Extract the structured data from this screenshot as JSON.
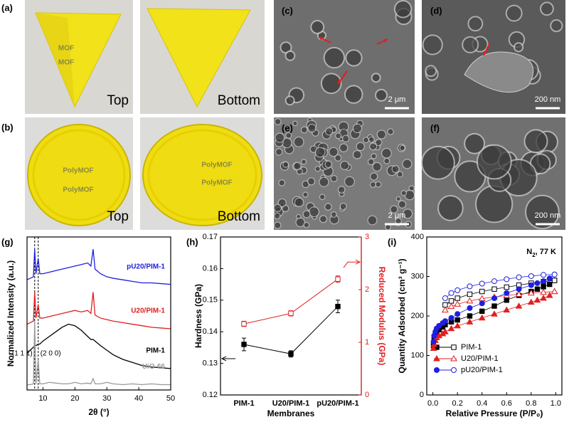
{
  "panel_labels": [
    "(a)",
    "(b)",
    "(c)",
    "(d)",
    "(e)",
    "(f)",
    "(g)",
    "(h)",
    "(i)"
  ],
  "photos": [
    {
      "inscriptions": [
        "MOF",
        "MOF"
      ],
      "caption": "Top"
    },
    {
      "caption": "Bottom"
    },
    {
      "inscriptions": [
        "PolyMOF",
        "PolyMOF"
      ],
      "caption": "Top"
    },
    {
      "inscriptions": [
        "PolyMOF",
        "PolyMOF"
      ],
      "caption": "Bottom"
    }
  ],
  "sem": [
    {
      "scale": "2 μm"
    },
    {
      "scale": "200 nm"
    },
    {
      "scale": "2 μm"
    },
    {
      "scale": "200 nm"
    }
  ],
  "chart_data": [
    {
      "type": "line",
      "xlabel": "2θ (°)",
      "ylabel": "Normalized Intensity (a.u.)",
      "x": [
        5,
        6,
        7,
        7.4,
        7.8,
        8.5,
        9,
        10,
        12,
        14,
        16,
        18,
        20,
        22,
        24,
        25,
        25.7,
        26.3,
        28,
        30,
        32,
        35,
        38,
        41,
        44,
        47,
        50
      ],
      "xlim": [
        5,
        50
      ],
      "xticks": [
        10,
        20,
        30,
        40,
        50
      ],
      "ylim": [
        0,
        10
      ],
      "series": [
        {
          "name": "pU20/PIM-1",
          "color": "#1f1fe0",
          "values": [
            7.2,
            7.3,
            7.4,
            9.2,
            7.6,
            8.6,
            7.6,
            7.6,
            7.7,
            7.8,
            7.9,
            8.0,
            8.1,
            8.2,
            8.3,
            8.1,
            9.2,
            7.9,
            7.6,
            7.4,
            7.3,
            7.2,
            7.1,
            7.0,
            7.0,
            6.95,
            6.9
          ]
        },
        {
          "name": "U20/PIM-1",
          "color": "#e02020",
          "values": [
            4.3,
            4.4,
            4.5,
            6.4,
            4.7,
            5.6,
            4.7,
            4.7,
            4.8,
            4.9,
            5.0,
            5.1,
            5.2,
            5.1,
            5.2,
            5.0,
            6.4,
            4.9,
            4.7,
            4.6,
            4.5,
            4.4,
            4.3,
            4.2,
            4.1,
            4.05,
            4.0
          ]
        },
        {
          "name": "PIM-1",
          "color": "#000000",
          "values": [
            2.4,
            2.6,
            2.8,
            2.9,
            2.9,
            3.0,
            3.0,
            3.2,
            3.5,
            3.8,
            4.1,
            4.3,
            4.2,
            3.9,
            3.5,
            3.3,
            3.3,
            3.2,
            2.9,
            2.6,
            2.3,
            2.0,
            1.8,
            1.6,
            1.5,
            1.45,
            1.4
          ]
        },
        {
          "name": "UiO-66",
          "color": "#999999",
          "values": [
            0.35,
            0.35,
            0.4,
            4.5,
            0.4,
            2.0,
            0.4,
            0.4,
            0.5,
            0.45,
            0.4,
            0.4,
            0.5,
            0.4,
            0.45,
            0.4,
            0.75,
            0.4,
            0.4,
            0.5,
            0.4,
            0.35,
            0.4,
            0.35,
            0.4,
            0.35,
            0.35
          ]
        }
      ],
      "reference_lines": [
        {
          "value": 7.4,
          "label": "(1 1 1)"
        },
        {
          "value": 8.5,
          "label": "(2 0 0)"
        }
      ]
    },
    {
      "type": "line",
      "xlabel": "Membranes",
      "ylabel": "Hardness (GPa)",
      "y2label": "Reduced Modulus (GPa)",
      "categories": [
        "PIM-1",
        "U20/PIM-1",
        "pU20/PIM-1"
      ],
      "ylim": [
        0.12,
        0.17
      ],
      "yticks": [
        0.12,
        0.13,
        0.14,
        0.15,
        0.16,
        0.17
      ],
      "y2lim": [
        0,
        3
      ],
      "y2ticks": [
        0,
        1,
        2,
        3
      ],
      "series": [
        {
          "color": "#000000",
          "values": [
            0.136,
            0.133,
            0.148
          ],
          "errors": [
            0.002,
            0.001,
            0.002
          ]
        },
        {
          "color": "#e02020",
          "axis": "y2",
          "values": [
            1.35,
            1.55,
            2.2
          ],
          "errors": [
            0.05,
            0.05,
            0.06
          ]
        }
      ]
    },
    {
      "type": "line",
      "xlabel": "Relative Pressure (P/P₀)",
      "ylabel": "Quantity Adsorbed (cm³ g⁻¹)",
      "annotation": [
        "N",
        "2",
        ", 77 K"
      ],
      "xlim": [
        -0.05,
        1.05
      ],
      "xticks": [
        0.0,
        0.2,
        0.4,
        0.6,
        0.8,
        1.0
      ],
      "ylim": [
        0,
        400
      ],
      "yticks": [
        0,
        100,
        200,
        300,
        400
      ],
      "series": [
        {
          "name": "PIM-1",
          "color": "#000000",
          "marker": "square",
          "x": [
            0.005,
            0.01,
            0.02,
            0.03,
            0.05,
            0.08,
            0.1,
            0.15,
            0.2,
            0.3,
            0.4,
            0.5,
            0.6,
            0.7,
            0.8,
            0.85,
            0.9,
            0.95,
            0.99
          ],
          "values": [
            125,
            140,
            150,
            158,
            165,
            172,
            178,
            185,
            190,
            200,
            212,
            225,
            240,
            252,
            262,
            268,
            274,
            280,
            290
          ],
          "desorption_x": [
            0.99,
            0.9,
            0.8,
            0.7,
            0.6,
            0.5,
            0.4,
            0.3,
            0.2,
            0.15,
            0.1
          ],
          "desorption_values": [
            290,
            287,
            283,
            278,
            273,
            268,
            262,
            255,
            245,
            238,
            228
          ]
        },
        {
          "name": "U20/PIM-1",
          "color": "#e02020",
          "marker": "triangle",
          "x": [
            0.005,
            0.01,
            0.02,
            0.03,
            0.05,
            0.08,
            0.1,
            0.15,
            0.2,
            0.3,
            0.4,
            0.5,
            0.6,
            0.7,
            0.8,
            0.85,
            0.9,
            0.95,
            0.99
          ],
          "values": [
            118,
            128,
            138,
            145,
            150,
            155,
            160,
            168,
            175,
            185,
            195,
            205,
            215,
            225,
            235,
            240,
            245,
            252,
            262
          ],
          "desorption_x": [
            0.99,
            0.9,
            0.8,
            0.7,
            0.6,
            0.5,
            0.4,
            0.3,
            0.2,
            0.15,
            0.1
          ],
          "desorption_values": [
            262,
            260,
            258,
            255,
            252,
            248,
            244,
            238,
            230,
            224,
            215
          ]
        },
        {
          "name": "pU20/PIM-1",
          "color": "#1f1fe0",
          "marker": "circle",
          "x": [
            0.005,
            0.01,
            0.02,
            0.03,
            0.05,
            0.08,
            0.1,
            0.15,
            0.2,
            0.3,
            0.4,
            0.5,
            0.6,
            0.7,
            0.8,
            0.85,
            0.9,
            0.95,
            0.99
          ],
          "values": [
            135,
            150,
            160,
            168,
            175,
            182,
            187,
            195,
            205,
            220,
            232,
            245,
            258,
            268,
            278,
            283,
            288,
            295,
            305
          ],
          "desorption_x": [
            0.99,
            0.9,
            0.8,
            0.7,
            0.6,
            0.5,
            0.4,
            0.3,
            0.2,
            0.15,
            0.1
          ],
          "desorption_values": [
            305,
            304,
            301,
            298,
            293,
            288,
            282,
            275,
            265,
            258,
            245
          ]
        }
      ]
    }
  ]
}
